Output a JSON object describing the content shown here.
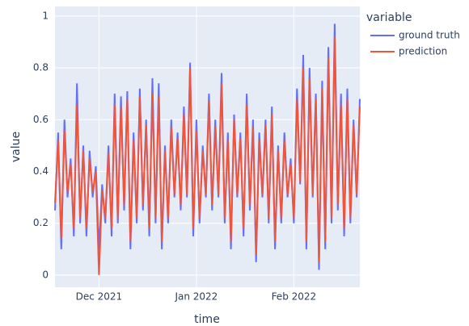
{
  "chart_data": {
    "type": "line",
    "xlabel": "time",
    "ylabel": "value",
    "legend_title": "variable",
    "legend": "top-right outside",
    "grid": true,
    "x": [
      "2021-11-17",
      "2021-11-18",
      "2021-11-19",
      "2021-11-20",
      "2021-11-21",
      "2021-11-22",
      "2021-11-23",
      "2021-11-24",
      "2021-11-25",
      "2021-11-26",
      "2021-11-27",
      "2021-11-28",
      "2021-11-29",
      "2021-11-30",
      "2021-12-01",
      "2021-12-02",
      "2021-12-03",
      "2021-12-04",
      "2021-12-05",
      "2021-12-06",
      "2021-12-07",
      "2021-12-08",
      "2021-12-09",
      "2021-12-10",
      "2021-12-11",
      "2021-12-12",
      "2021-12-13",
      "2021-12-14",
      "2021-12-15",
      "2021-12-16",
      "2021-12-17",
      "2021-12-18",
      "2021-12-19",
      "2021-12-20",
      "2021-12-21",
      "2021-12-22",
      "2021-12-23",
      "2021-12-24",
      "2021-12-25",
      "2021-12-26",
      "2021-12-27",
      "2021-12-28",
      "2021-12-29",
      "2021-12-30",
      "2021-12-31",
      "2022-01-01",
      "2022-01-02",
      "2022-01-03",
      "2022-01-04",
      "2022-01-05",
      "2022-01-06",
      "2022-01-07",
      "2022-01-08",
      "2022-01-09",
      "2022-01-10",
      "2022-01-11",
      "2022-01-12",
      "2022-01-13",
      "2022-01-14",
      "2022-01-15",
      "2022-01-16",
      "2022-01-17",
      "2022-01-18",
      "2022-01-19",
      "2022-01-20",
      "2022-01-21",
      "2022-01-22",
      "2022-01-23",
      "2022-01-24",
      "2022-01-25",
      "2022-01-26",
      "2022-01-27",
      "2022-01-28",
      "2022-01-29",
      "2022-01-30",
      "2022-01-31",
      "2022-02-01",
      "2022-02-02",
      "2022-02-03",
      "2022-02-04",
      "2022-02-05",
      "2022-02-06",
      "2022-02-07",
      "2022-02-08",
      "2022-02-09",
      "2022-02-10",
      "2022-02-11",
      "2022-02-12",
      "2022-02-13",
      "2022-02-14",
      "2022-02-15",
      "2022-02-16",
      "2022-02-17",
      "2022-02-18",
      "2022-02-19",
      "2022-02-20",
      "2022-02-21",
      "2022-02-22"
    ],
    "series": [
      {
        "name": "ground truth",
        "color": "#636efa",
        "values": [
          0.25,
          0.55,
          0.1,
          0.6,
          0.3,
          0.45,
          0.15,
          0.74,
          0.2,
          0.5,
          0.15,
          0.48,
          0.3,
          0.42,
          0.1,
          0.35,
          0.2,
          0.5,
          0.15,
          0.7,
          0.2,
          0.69,
          0.25,
          0.71,
          0.1,
          0.55,
          0.2,
          0.72,
          0.25,
          0.6,
          0.15,
          0.76,
          0.2,
          0.74,
          0.1,
          0.5,
          0.2,
          0.6,
          0.3,
          0.55,
          0.25,
          0.65,
          0.3,
          0.82,
          0.15,
          0.6,
          0.2,
          0.5,
          0.3,
          0.7,
          0.25,
          0.6,
          0.3,
          0.78,
          0.2,
          0.55,
          0.1,
          0.62,
          0.3,
          0.55,
          0.15,
          0.7,
          0.25,
          0.6,
          0.05,
          0.55,
          0.3,
          0.6,
          0.2,
          0.65,
          0.1,
          0.5,
          0.2,
          0.55,
          0.3,
          0.45,
          0.2,
          0.72,
          0.35,
          0.85,
          0.1,
          0.8,
          0.3,
          0.7,
          0.02,
          0.75,
          0.1,
          0.88,
          0.2,
          0.97,
          0.25,
          0.7,
          0.15,
          0.72,
          0.2,
          0.6,
          0.3,
          0.68
        ]
      },
      {
        "name": "prediction",
        "color": "#ef553b",
        "values": [
          0.28,
          0.52,
          0.14,
          0.56,
          0.32,
          0.43,
          0.18,
          0.66,
          0.22,
          0.48,
          0.18,
          0.45,
          0.32,
          0.4,
          0.0,
          0.33,
          0.22,
          0.47,
          0.18,
          0.66,
          0.22,
          0.65,
          0.27,
          0.68,
          0.13,
          0.52,
          0.22,
          0.69,
          0.27,
          0.58,
          0.18,
          0.7,
          0.22,
          0.69,
          0.13,
          0.48,
          0.22,
          0.57,
          0.31,
          0.53,
          0.27,
          0.62,
          0.31,
          0.8,
          0.18,
          0.56,
          0.22,
          0.48,
          0.31,
          0.67,
          0.27,
          0.57,
          0.31,
          0.74,
          0.22,
          0.52,
          0.13,
          0.6,
          0.31,
          0.53,
          0.18,
          0.66,
          0.27,
          0.57,
          0.08,
          0.52,
          0.31,
          0.58,
          0.22,
          0.62,
          0.13,
          0.48,
          0.22,
          0.52,
          0.31,
          0.43,
          0.22,
          0.68,
          0.36,
          0.8,
          0.13,
          0.76,
          0.31,
          0.68,
          0.05,
          0.72,
          0.13,
          0.84,
          0.22,
          0.92,
          0.27,
          0.66,
          0.18,
          0.68,
          0.22,
          0.58,
          0.31,
          0.65
        ]
      }
    ],
    "xlim": [
      "2021-11-17",
      "2022-02-22"
    ],
    "xticks": [
      {
        "value": "2021-12-01",
        "label": "Dec 2021"
      },
      {
        "value": "2022-01-01",
        "label": "Jan 2022"
      },
      {
        "value": "2022-02-01",
        "label": "Feb 2022"
      }
    ],
    "ylim": [
      -0.047,
      1.037
    ],
    "yticks": [
      0,
      0.2,
      0.4,
      0.6,
      0.8,
      1
    ]
  }
}
